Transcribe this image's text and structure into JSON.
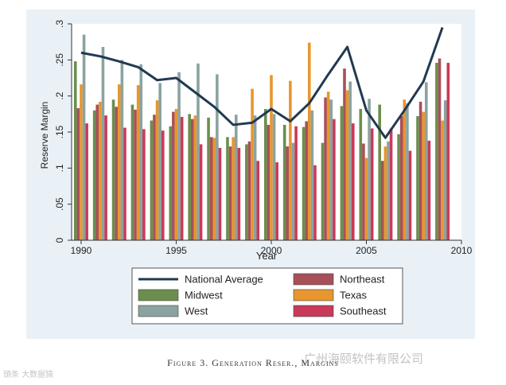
{
  "chart_data": {
    "type": "bar+line",
    "title": "",
    "xlabel": "Year",
    "ylabel": "Reserve Margin",
    "ylim": [
      0,
      0.3
    ],
    "xlim": [
      1989.5,
      2010
    ],
    "y_ticks": [
      0,
      0.05,
      0.1,
      0.15,
      0.2,
      0.25,
      0.3
    ],
    "y_tick_labels": [
      "0",
      ".05",
      ".1",
      ".15",
      ".2",
      ".25",
      ".3"
    ],
    "x_ticks": [
      1990,
      1995,
      2000,
      2005,
      2010
    ],
    "x_tick_labels": [
      "1990",
      "1995",
      "2000",
      "2005",
      "2010"
    ],
    "grid": false,
    "legend_position": "bottom",
    "years": [
      1990,
      1991,
      1992,
      1993,
      1994,
      1995,
      1996,
      1997,
      1998,
      1999,
      2000,
      2001,
      2002,
      2003,
      2004,
      2005,
      2006,
      2007,
      2008,
      2009
    ],
    "bar_order": [
      "Midwest",
      "Northeast",
      "Texas",
      "West",
      "Southeast"
    ],
    "series": [
      {
        "name": "National Average",
        "kind": "line",
        "color": "#213a52",
        "values": [
          0.26,
          0.255,
          0.248,
          0.24,
          0.222,
          0.225,
          0.205,
          0.185,
          0.16,
          0.163,
          0.182,
          0.165,
          0.19,
          0.23,
          0.268,
          0.18,
          0.142,
          0.18,
          0.22,
          0.295
        ]
      },
      {
        "name": "Midwest",
        "kind": "bar",
        "color": "#6b8e4e",
        "values": [
          0.248,
          0.18,
          0.195,
          0.188,
          0.166,
          0.158,
          0.175,
          0.17,
          0.143,
          0.133,
          0.182,
          0.16,
          0.157,
          0.135,
          0.186,
          0.182,
          0.188,
          0.147,
          0.172,
          0.246
        ]
      },
      {
        "name": "Northeast",
        "kind": "bar",
        "color": "#a8505a",
        "values": [
          0.183,
          0.188,
          0.185,
          0.181,
          0.174,
          0.178,
          0.168,
          0.143,
          0.13,
          0.137,
          0.16,
          0.13,
          0.165,
          0.198,
          0.238,
          0.134,
          0.11,
          0.172,
          0.192,
          0.252
        ]
      },
      {
        "name": "Texas",
        "kind": "bar",
        "color": "#e8962e",
        "values": [
          0.216,
          0.192,
          0.216,
          0.215,
          0.194,
          0.182,
          0.173,
          0.142,
          0.143,
          0.21,
          0.229,
          0.221,
          0.274,
          0.206,
          0.208,
          0.114,
          0.13,
          0.195,
          0.178,
          0.166
        ]
      },
      {
        "name": "West",
        "kind": "bar",
        "color": "#8aa3a0",
        "values": [
          0.285,
          0.268,
          0.25,
          0.244,
          0.218,
          0.233,
          0.245,
          0.23,
          0.174,
          0.173,
          0.175,
          0.135,
          0.18,
          0.195,
          0.22,
          0.196,
          0.137,
          0.19,
          0.219,
          0.194
        ]
      },
      {
        "name": "Southeast",
        "kind": "bar",
        "color": "#c93a5a",
        "values": [
          0.162,
          0.173,
          0.156,
          0.154,
          0.152,
          0.171,
          0.133,
          0.128,
          0.128,
          0.11,
          0.108,
          0.158,
          0.104,
          0.168,
          0.162,
          0.155,
          0.155,
          0.124,
          0.138,
          0.246
        ]
      }
    ],
    "legend": {
      "items": [
        {
          "label": "National Average",
          "kind": "line",
          "color": "#213a52"
        },
        {
          "label": "Northeast",
          "kind": "box",
          "color": "#a8505a"
        },
        {
          "label": "Midwest",
          "kind": "box",
          "color": "#6b8e4e"
        },
        {
          "label": "Texas",
          "kind": "box",
          "color": "#e8962e"
        },
        {
          "label": "West",
          "kind": "box",
          "color": "#8aa3a0"
        },
        {
          "label": "Southeast",
          "kind": "box",
          "color": "#c93a5a"
        }
      ]
    }
  },
  "caption": "Figure 3. Generation Reser., Margins",
  "watermark": {
    "right": "广州海颐软件有限公司",
    "left": "頭条 大数据猿"
  }
}
